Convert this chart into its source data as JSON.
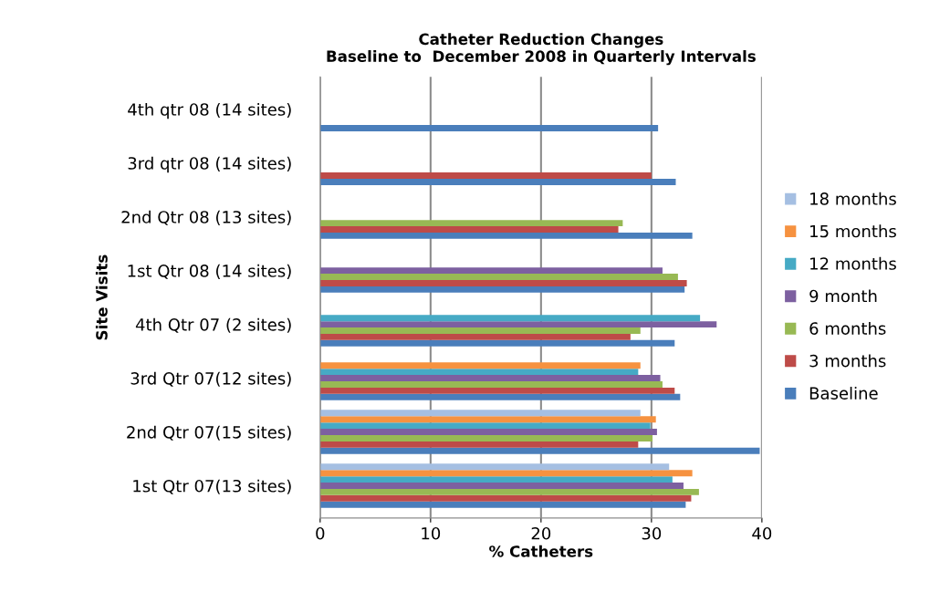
{
  "chart_data": {
    "type": "bar",
    "orientation": "horizontal",
    "title": "Catheter Reduction Changes\nBaseline to  December 2008 in Quarterly Intervals",
    "xlabel": "% Catheters",
    "ylabel": "Site Visits",
    "categories": [
      "4th qtr 08 (14 sites)",
      "3rd qtr 08 (14 sites)",
      "2nd Qtr 08 (13 sites)",
      "1st Qtr 08 (14 sites)",
      "4th Qtr 07 (2 sites)",
      "3rd Qtr 07(12 sites)",
      "2nd Qtr 07(15 sites)",
      "1st Qtr 07(13 sites)"
    ],
    "series": [
      {
        "name": "Baseline",
        "color": "#4a7ebb",
        "values": [
          30.6,
          32.2,
          33.7,
          33.0,
          32.1,
          32.6,
          39.8,
          33.1
        ]
      },
      {
        "name": "3 months",
        "color": "#be4b48",
        "values": [
          null,
          30.0,
          27.0,
          33.2,
          28.1,
          32.1,
          28.8,
          33.6
        ]
      },
      {
        "name": "6 months",
        "color": "#98b954",
        "values": [
          null,
          null,
          27.4,
          32.4,
          29.0,
          31.0,
          30.1,
          34.3
        ]
      },
      {
        "name": "9 month",
        "color": "#7d60a0",
        "values": [
          null,
          null,
          null,
          31.0,
          35.9,
          30.8,
          30.5,
          32.9
        ]
      },
      {
        "name": "12 months",
        "color": "#46aac5",
        "values": [
          null,
          null,
          null,
          null,
          34.4,
          28.8,
          29.9,
          31.9
        ]
      },
      {
        "name": "15 months",
        "color": "#f69240",
        "values": [
          null,
          null,
          null,
          null,
          null,
          29.0,
          30.4,
          33.7
        ]
      },
      {
        "name": "18 months",
        "color": "#a5bfe2",
        "values": [
          null,
          null,
          null,
          null,
          null,
          null,
          29.0,
          31.6
        ]
      }
    ],
    "xlim": [
      0,
      40
    ],
    "xticks": [
      0,
      10,
      20,
      30,
      40
    ],
    "grid": "x",
    "legend": "right"
  }
}
